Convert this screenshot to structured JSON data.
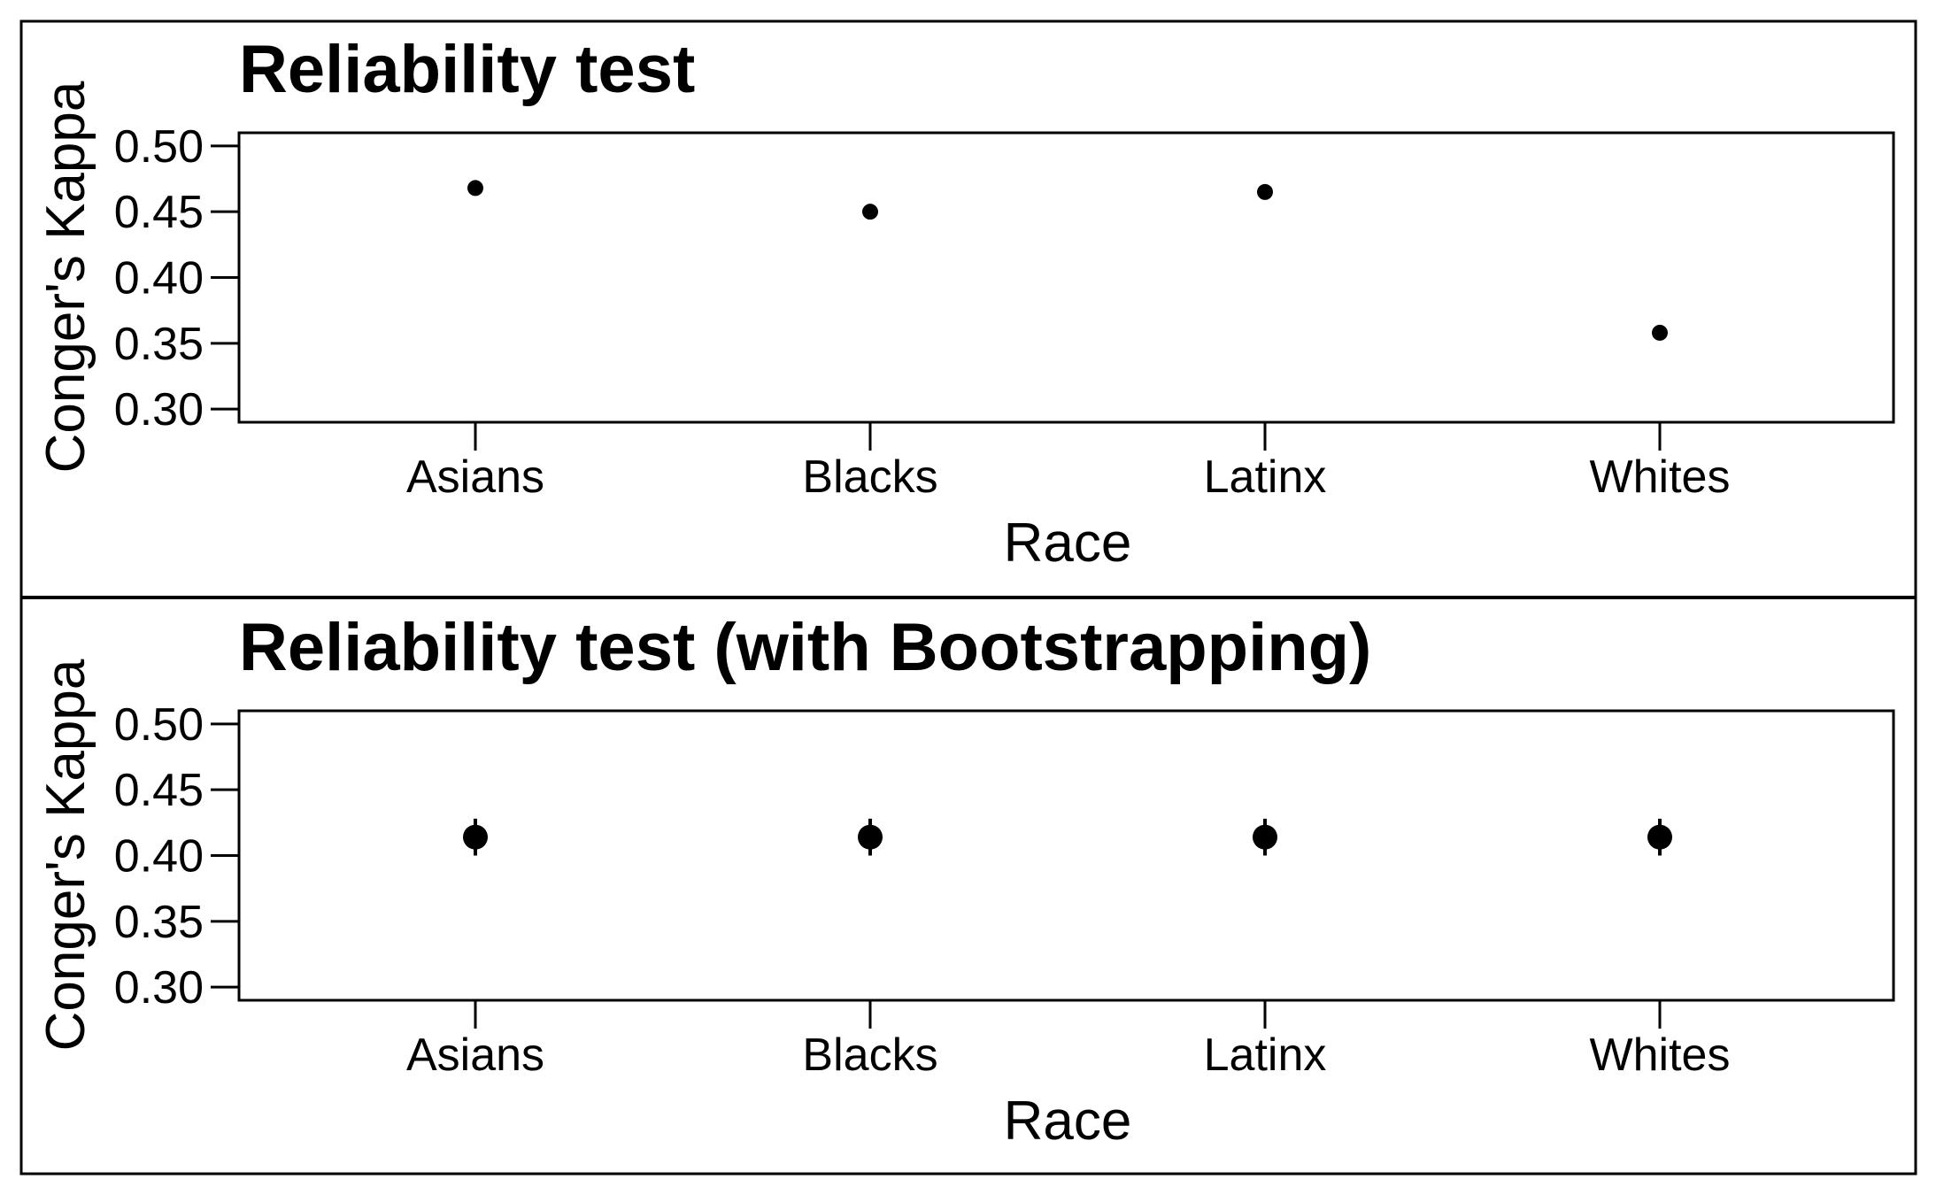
{
  "chart_data": [
    {
      "type": "scatter",
      "title": "Reliability test",
      "xlabel": "Race",
      "ylabel": "Conger's Kappa",
      "categories": [
        "Asians",
        "Blacks",
        "Latinx",
        "Whites"
      ],
      "values": [
        0.468,
        0.45,
        0.465,
        0.358
      ],
      "ylim": [
        0.29,
        0.51
      ],
      "yticks": [
        "0.30",
        "0.35",
        "0.40",
        "0.45",
        "0.50"
      ],
      "error_bars": false,
      "grid": false
    },
    {
      "type": "scatter",
      "title": "Reliability test (with Bootstrapping)",
      "xlabel": "Race",
      "ylabel": "Conger's Kappa",
      "categories": [
        "Asians",
        "Blacks",
        "Latinx",
        "Whites"
      ],
      "values": [
        0.414,
        0.414,
        0.414,
        0.414
      ],
      "lower": [
        0.4,
        0.4,
        0.4,
        0.4
      ],
      "upper": [
        0.428,
        0.428,
        0.428,
        0.428
      ],
      "ylim": [
        0.29,
        0.51
      ],
      "yticks": [
        "0.30",
        "0.35",
        "0.40",
        "0.45",
        "0.50"
      ],
      "error_bars": true,
      "grid": false
    }
  ],
  "colors": {
    "marker": "#000000",
    "axis": "#000000",
    "background": "#ffffff"
  }
}
